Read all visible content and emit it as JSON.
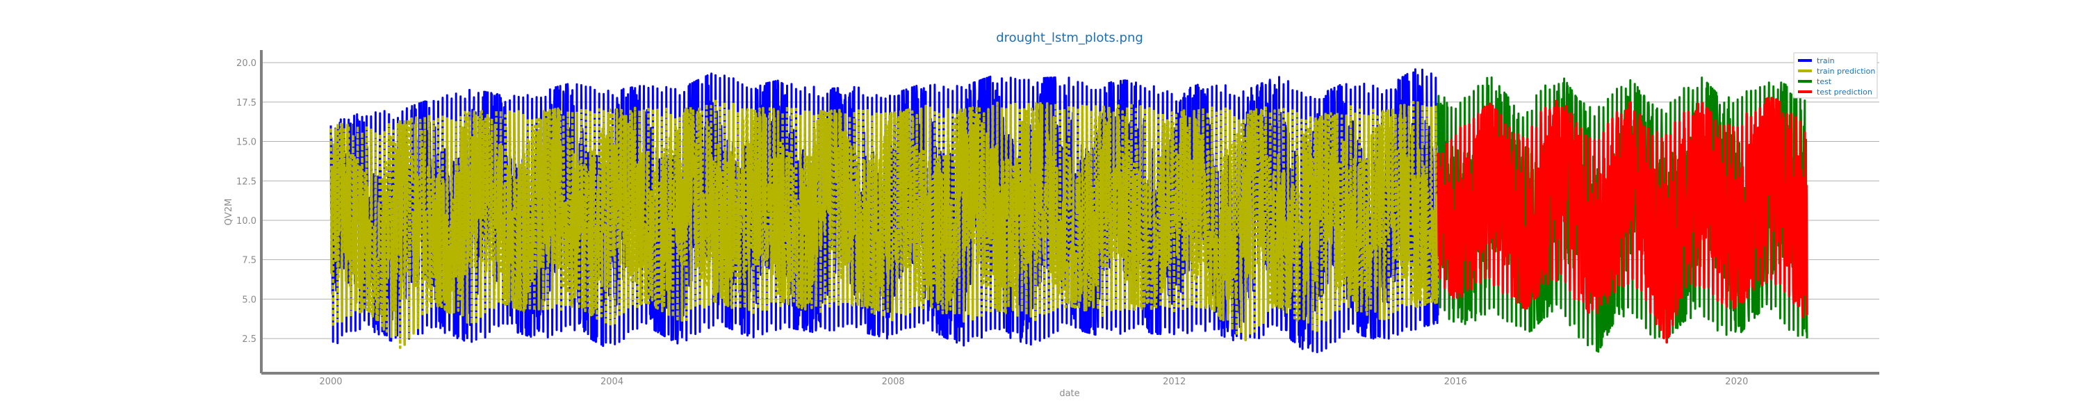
{
  "chart_data": {
    "type": "line",
    "title": "drought_lstm_plots.png",
    "xlabel": "date",
    "ylabel": "QV2M",
    "x_ticks": [
      "2000",
      "2004",
      "2008",
      "2012",
      "2016",
      "2020"
    ],
    "y_ticks": [
      "2.5",
      "5.0",
      "7.5",
      "10.0",
      "12.5",
      "15.0",
      "17.5",
      "20.0"
    ],
    "xlim": [
      "2000",
      "2021"
    ],
    "ylim": [
      0.3,
      20.8
    ],
    "grid": "horizontal",
    "legend_position": "top-right",
    "series": [
      {
        "name": "train",
        "color": "#0000ff",
        "x": [
          "2000-01",
          "2000-07",
          "2001-01",
          "2001-07",
          "2002-01",
          "2002-07",
          "2003-01",
          "2003-07",
          "2004-01",
          "2004-07",
          "2005-01",
          "2005-07",
          "2006-01",
          "2006-07",
          "2007-01",
          "2007-07",
          "2008-01",
          "2008-07",
          "2009-01",
          "2009-07",
          "2010-01",
          "2010-07",
          "2011-01",
          "2011-07",
          "2012-01",
          "2012-07",
          "2013-01",
          "2013-07",
          "2014-01",
          "2014-07",
          "2015-01",
          "2015-07",
          "2015-10"
        ],
        "low": [
          1.7,
          3.2,
          2.0,
          3.0,
          2.2,
          3.1,
          2.4,
          3.0,
          1.7,
          3.3,
          2.0,
          3.5,
          2.5,
          3.2,
          2.8,
          3.0,
          2.4,
          3.1,
          2.0,
          2.8,
          2.0,
          3.2,
          2.6,
          2.9,
          2.7,
          3.0,
          2.1,
          3.0,
          1.2,
          2.9,
          2.3,
          3.2,
          3.5
        ],
        "high": [
          16.2,
          16.9,
          17.0,
          17.8,
          18.3,
          17.9,
          18.2,
          18.8,
          18.2,
          18.6,
          18.4,
          19.5,
          18.5,
          19.0,
          18.3,
          18.5,
          18.0,
          18.8,
          18.5,
          19.3,
          19.0,
          19.1,
          18.7,
          19.0,
          18.0,
          18.9,
          18.2,
          19.2,
          17.8,
          18.9,
          18.4,
          19.8,
          19.5
        ]
      },
      {
        "name": "train prediction",
        "color": "#b5b500",
        "x": [
          "2000-01",
          "2000-07",
          "2001-01",
          "2001-07",
          "2002-01",
          "2002-07",
          "2003-01",
          "2003-07",
          "2004-01",
          "2004-07",
          "2005-01",
          "2005-07",
          "2006-01",
          "2006-07",
          "2007-01",
          "2007-07",
          "2008-01",
          "2008-07",
          "2009-01",
          "2009-07",
          "2010-01",
          "2010-07",
          "2011-01",
          "2011-07",
          "2012-01",
          "2012-07",
          "2013-01",
          "2013-07",
          "2014-01",
          "2014-07",
          "2015-01",
          "2015-07",
          "2015-10"
        ],
        "low": [
          2.8,
          4.4,
          1.8,
          4.6,
          3.2,
          4.6,
          3.9,
          4.6,
          3.1,
          4.8,
          3.5,
          4.9,
          3.8,
          4.7,
          4.0,
          4.6,
          3.5,
          4.6,
          3.4,
          4.3,
          3.4,
          4.6,
          3.9,
          4.4,
          4.0,
          4.5,
          2.1,
          4.5,
          2.8,
          4.4,
          3.6,
          4.6,
          4.8
        ],
        "high": [
          16.2,
          15.9,
          16.3,
          16.8,
          16.9,
          17.0,
          16.9,
          17.3,
          17.0,
          17.2,
          17.0,
          17.8,
          17.0,
          17.4,
          16.9,
          17.1,
          16.8,
          17.3,
          17.0,
          17.6,
          17.4,
          17.5,
          17.2,
          17.4,
          16.8,
          17.4,
          16.8,
          17.5,
          16.5,
          17.3,
          16.9,
          17.8,
          17.6
        ]
      },
      {
        "name": "test",
        "color": "#008000",
        "x": [
          "2015-10",
          "2016-01",
          "2016-04",
          "2016-07",
          "2016-10",
          "2017-01",
          "2017-04",
          "2017-07",
          "2017-10",
          "2018-01",
          "2018-04",
          "2018-07",
          "2018-10",
          "2019-01",
          "2019-04",
          "2019-07",
          "2019-10",
          "2020-01",
          "2020-04",
          "2020-07",
          "2020-10",
          "2021-01"
        ],
        "low": [
          4.1,
          3.2,
          3.6,
          4.0,
          3.3,
          2.6,
          3.8,
          4.2,
          2.5,
          1.4,
          3.5,
          4.1,
          2.6,
          2.4,
          3.6,
          4.0,
          2.8,
          2.6,
          3.8,
          4.3,
          3.0,
          2.1
        ],
        "high": [
          17.9,
          17.6,
          18.4,
          19.2,
          17.8,
          17.0,
          18.6,
          19.3,
          17.6,
          17.0,
          18.3,
          19.0,
          17.5,
          17.2,
          18.4,
          19.1,
          17.9,
          17.8,
          18.7,
          19.0,
          18.5,
          17.8
        ]
      },
      {
        "name": "test prediction",
        "color": "#ff0000",
        "x": [
          "2015-10",
          "2016-01",
          "2016-04",
          "2016-07",
          "2016-10",
          "2017-01",
          "2017-04",
          "2017-07",
          "2017-10",
          "2018-01",
          "2018-04",
          "2018-07",
          "2018-10",
          "2019-01",
          "2019-04",
          "2019-07",
          "2019-10",
          "2020-01",
          "2020-04",
          "2020-07",
          "2020-10",
          "2021-01"
        ],
        "low": [
          6.0,
          5.0,
          5.5,
          6.0,
          4.9,
          4.4,
          5.6,
          6.2,
          4.5,
          3.9,
          5.3,
          5.9,
          4.3,
          2.2,
          5.3,
          5.9,
          4.6,
          4.4,
          5.6,
          6.1,
          4.8,
          3.6
        ],
        "high": [
          14.3,
          15.6,
          16.8,
          17.4,
          16.1,
          15.3,
          17.2,
          17.7,
          16.1,
          15.4,
          16.9,
          17.5,
          15.9,
          15.6,
          16.9,
          17.5,
          16.3,
          16.2,
          17.2,
          17.9,
          17.0,
          16.0
        ]
      }
    ]
  }
}
